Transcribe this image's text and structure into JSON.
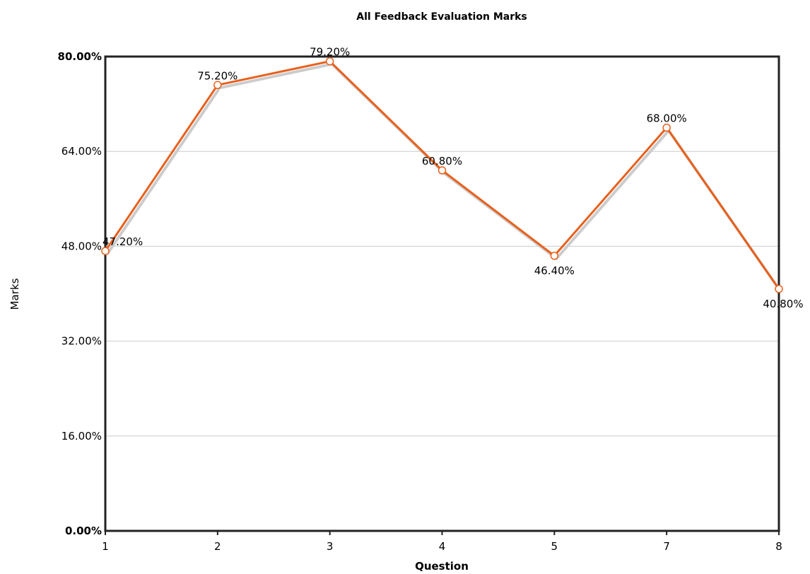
{
  "chart_data": {
    "type": "line",
    "title": "All Feedback Evaluation Marks",
    "xlabel": "Question",
    "ylabel": "Marks",
    "categories": [
      "1",
      "2",
      "3",
      "4",
      "5",
      "7",
      "8"
    ],
    "series": [
      {
        "values": [
          47.2,
          75.2,
          79.2,
          60.8,
          46.4,
          68.0,
          40.8
        ],
        "labels": [
          "47.20%",
          "75.20%",
          "79.20%",
          "60.80%",
          "46.40%",
          "68.00%",
          "40.80%"
        ]
      }
    ],
    "ylim": [
      0,
      80
    ],
    "yticks": [
      0,
      16,
      32,
      48,
      64,
      80
    ],
    "ytick_labels": [
      "0.00%",
      "16.00%",
      "32.00%",
      "48.00%",
      "64.00%",
      "80.00%"
    ],
    "grid": true,
    "colors": {
      "line": "#e8601c",
      "shadow": "#cccccc",
      "marker_fill": "#ffffff",
      "grid": "#cccccc",
      "frame": "#222222"
    }
  }
}
